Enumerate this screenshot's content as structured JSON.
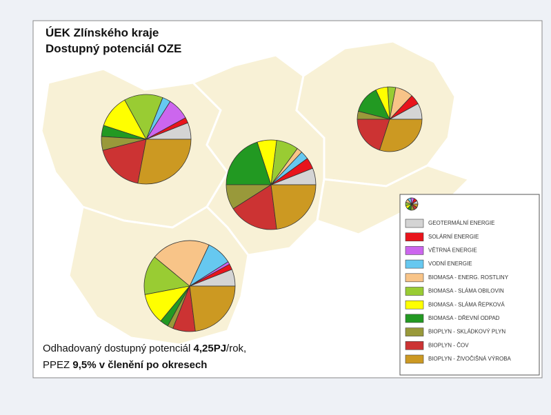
{
  "title": [
    "ÚEK Zlínského kraje",
    "Dostupný potenciál OZE"
  ],
  "map": {
    "type": "pie",
    "categories": [
      "GEOTERMÁLNÍ ENERGIE",
      "SOLÁRNÍ ENERGIE",
      "VĚTRNÁ ENERGIE",
      "VODNÍ ENERGIE",
      "BIOMASA - ENERG. ROSTLINY",
      "BIOMASA - SLÁMA OBILOVIN",
      "BIOMASA - SLÁMA ŘEPKOVÁ",
      "BIOMASA - DŘEVNÍ ODPAD",
      "BIOPLYN - SKLÁDKOVÝ PLYN",
      "BIOPLYN - ČOV",
      "BIOPLYN - ŽIVOČIŠNÁ VÝROBA"
    ],
    "colors": [
      "#d4d4d4",
      "#e8141c",
      "#cc66ee",
      "#66c8f0",
      "#f8c488",
      "#99cc33",
      "#ffff00",
      "#229922",
      "#99993a",
      "#cc3333",
      "#cc9922"
    ],
    "pies": [
      {
        "values": [
          6,
          2,
          8,
          3,
          0,
          14,
          12,
          4,
          5,
          18,
          28
        ]
      },
      {
        "values": [
          6,
          4,
          0,
          3,
          2,
          8,
          7,
          20,
          9,
          18,
          23
        ]
      },
      {
        "values": [
          8,
          5,
          0,
          0,
          9,
          4,
          6,
          14,
          4,
          20,
          30
        ]
      },
      {
        "values": [
          6,
          2,
          1,
          9,
          21,
          14,
          11,
          3,
          2,
          8,
          23
        ]
      }
    ]
  },
  "caption": {
    "line1": [
      "Odhadovaný dostupný potenciál ",
      "4,25PJ",
      "/rok,"
    ],
    "line2": [
      "PPEZ ",
      "9,5% v členění po okresech"
    ]
  }
}
